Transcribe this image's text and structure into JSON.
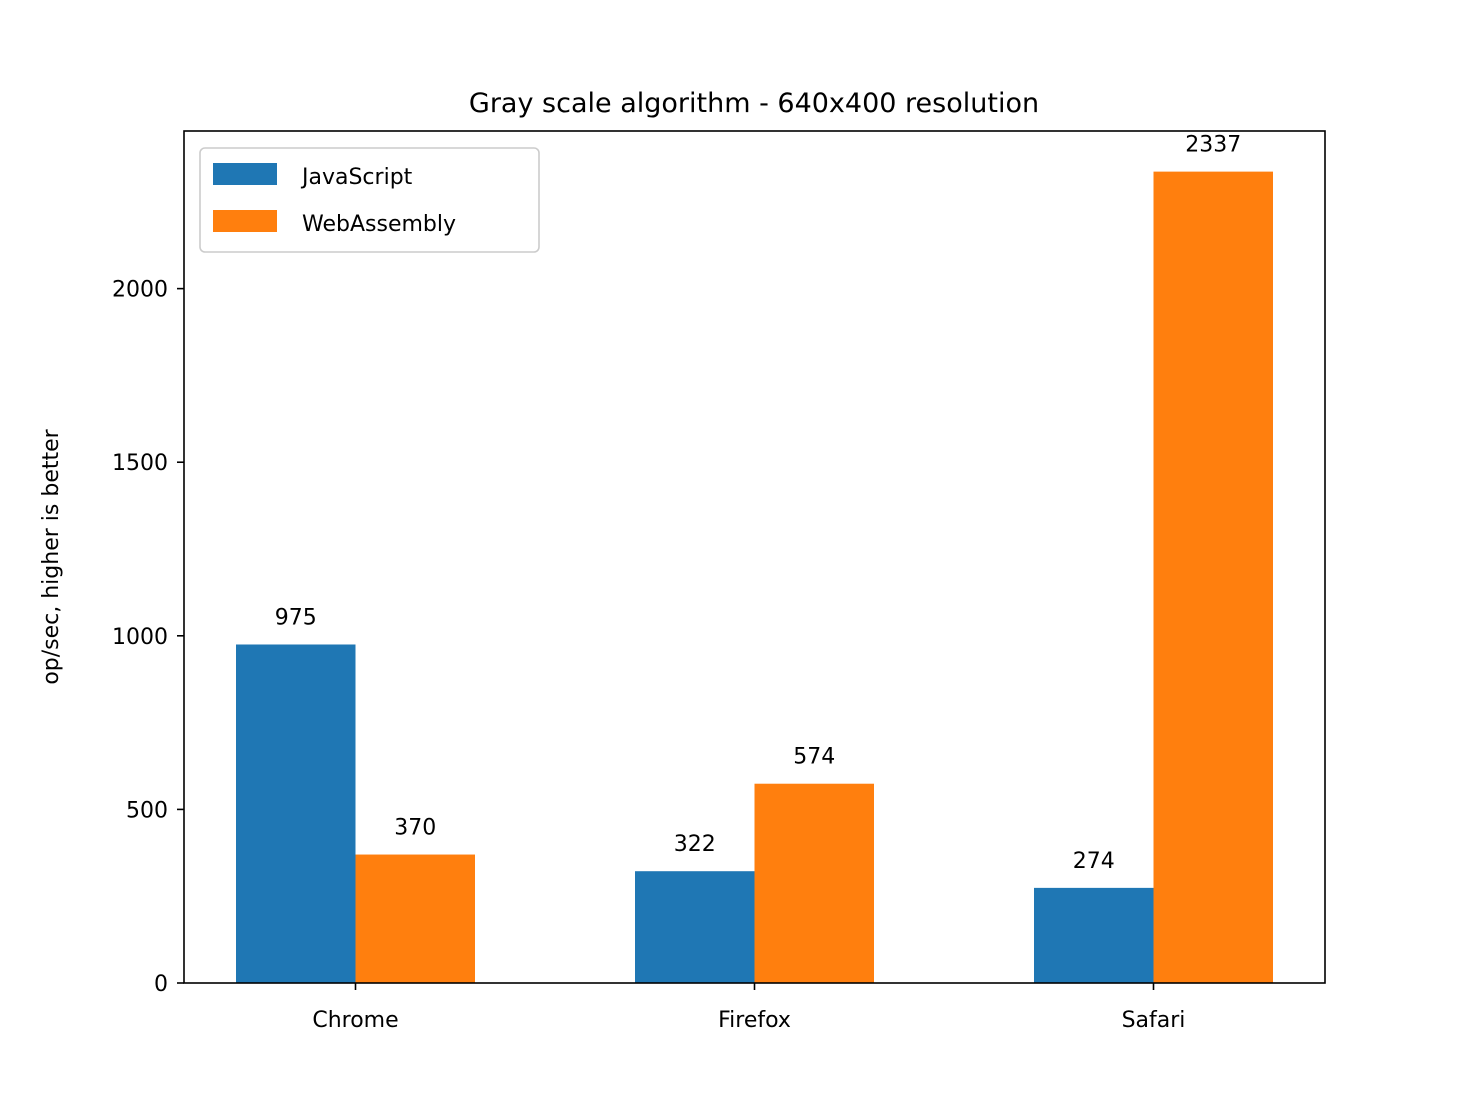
{
  "chart_data": {
    "type": "bar",
    "title": "Gray scale algorithm - 640x400 resolution",
    "xlabel": "",
    "ylabel": "op/sec, higher is better",
    "categories": [
      "Chrome",
      "Firefox",
      "Safari"
    ],
    "series": [
      {
        "name": "JavaScript",
        "values": [
          975,
          322,
          274
        ],
        "color": "#1f77b4"
      },
      {
        "name": "WebAssembly",
        "values": [
          370,
          574,
          2337
        ],
        "color": "#ff7f0e"
      }
    ],
    "data_labels": [
      [
        "975",
        "322",
        "274"
      ],
      [
        "370",
        "574",
        "2337"
      ]
    ],
    "yticks": [
      0,
      500,
      1000,
      1500,
      2000
    ],
    "ytick_labels": [
      "0",
      "500",
      "1000",
      "1500",
      "2000"
    ],
    "ylim": [
      0,
      2454
    ],
    "grid": false,
    "legend_position": "top-left"
  }
}
